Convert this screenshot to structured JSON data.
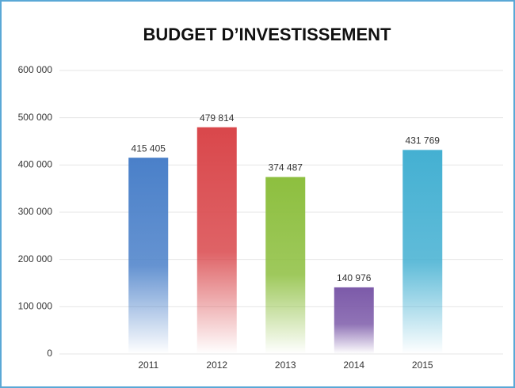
{
  "chart_data": {
    "type": "bar",
    "title": "BUDGET D’INVESTISSEMENT",
    "categories": [
      "2011",
      "2012",
      "2013",
      "2014",
      "2015"
    ],
    "values": [
      415405,
      479814,
      374487,
      140976,
      431769
    ],
    "value_labels": [
      "415 405",
      "479 814",
      "374 487",
      "140 976",
      "431 769"
    ],
    "colors": [
      "#4a80c9",
      "#d9474b",
      "#8dbf3f",
      "#7c5aa9",
      "#44b0d2"
    ],
    "ylim": [
      0,
      600000
    ],
    "yticks": [
      {
        "value": 0,
        "label": "0"
      },
      {
        "value": 100000,
        "label": "100 000"
      },
      {
        "value": 200000,
        "label": "200 000"
      },
      {
        "value": 300000,
        "label": "300 000"
      },
      {
        "value": 400000,
        "label": "400 000"
      },
      {
        "value": 500000,
        "label": "500 000"
      },
      {
        "value": 600000,
        "label": "600 000"
      }
    ],
    "grid": true
  }
}
